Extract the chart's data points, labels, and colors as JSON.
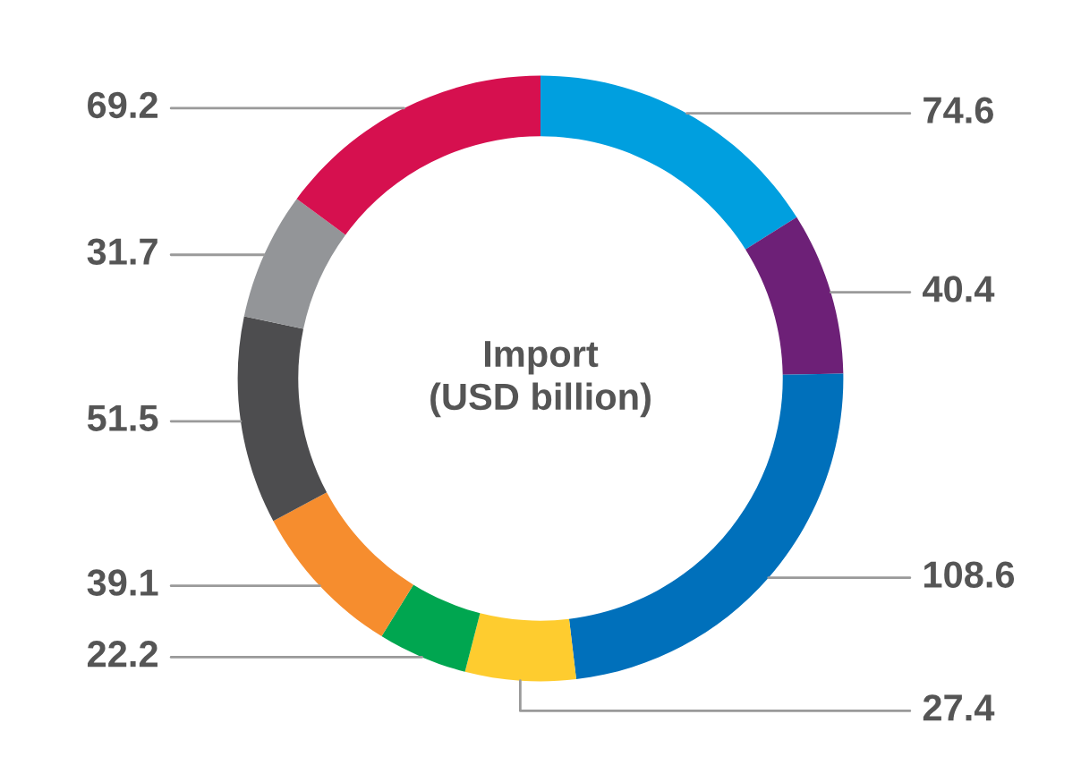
{
  "chart_data": {
    "type": "donut",
    "title": "Import\n(USD billion)",
    "categories": [
      null,
      null,
      null,
      null,
      null,
      null,
      null,
      null,
      null
    ],
    "values": [
      74.6,
      40.4,
      108.6,
      27.4,
      22.2,
      39.1,
      51.5,
      31.7,
      69.2
    ],
    "colors": [
      "#009fdf",
      "#6d2077",
      "#0070bb",
      "#fecc2f",
      "#00a650",
      "#f68d2e",
      "#4d4d4f",
      "#939598",
      "#d6104f"
    ],
    "data_labels": true
  }
}
